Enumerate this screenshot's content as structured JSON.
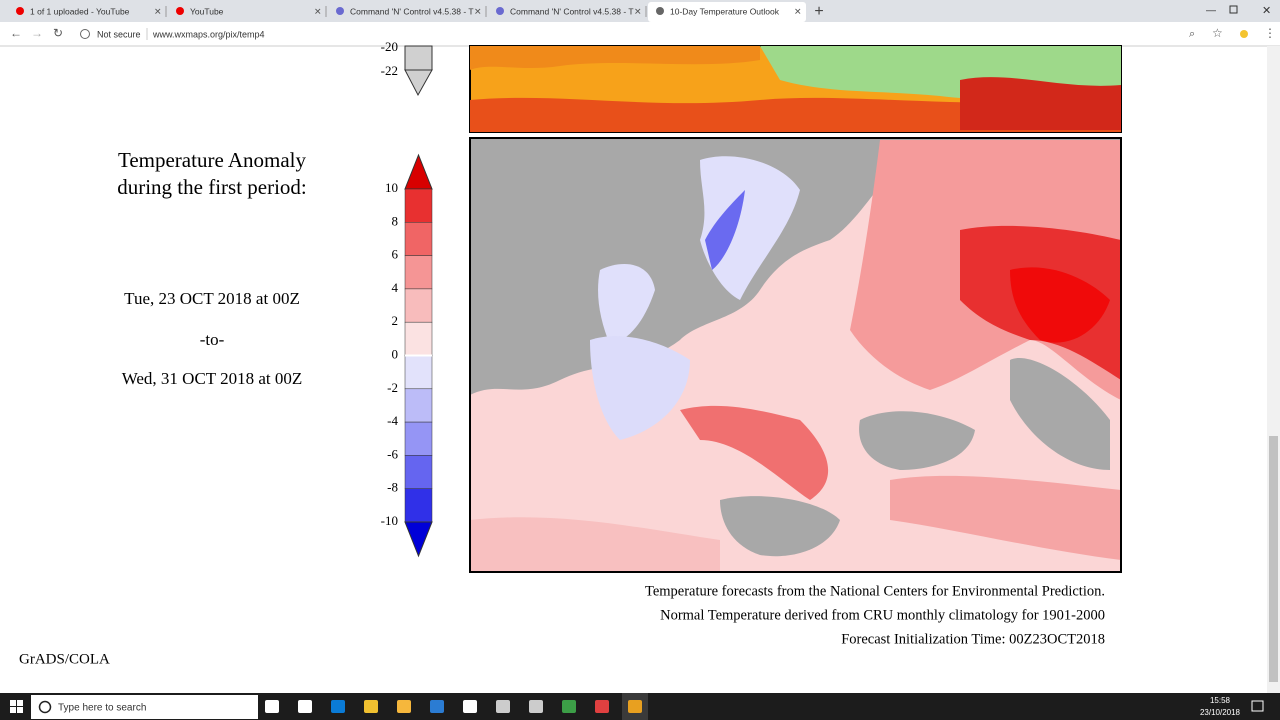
{
  "browser": {
    "tabs": [
      {
        "title": "1 of 1 uploaded - YouTube"
      },
      {
        "title": "YouTube"
      },
      {
        "title": "Command 'N' Control v4.5.38 - T"
      },
      {
        "title": "Command 'N' Control v4.5.38 - T"
      },
      {
        "title": "10-Day Temperature Outlook"
      }
    ],
    "security": "Not secure",
    "url": "www.wxmaps.org/pix/temp4"
  },
  "page": {
    "top_scale_labels": [
      "-20",
      "-22"
    ],
    "heading": [
      "Temperature Anomaly",
      "during the first period:"
    ],
    "period_start": "Tue, 23 OCT 2018 at 00Z",
    "period_sep": "-to-",
    "period_end": "Wed, 31 OCT 2018 at 00Z",
    "scale_labels": [
      "10",
      "8",
      "6",
      "4",
      "2",
      "0",
      "-2",
      "-4",
      "-6",
      "-8",
      "-10"
    ],
    "credits": [
      "Temperature forecasts from the National Centers for Environmental Prediction.",
      "Normal Temperature derived from CRU monthly climatology for 1901-2000",
      "Forecast Initialization Time: 00Z23OCT2018"
    ],
    "signature": "GrADS/COLA"
  },
  "taskbar": {
    "search": "Type here to search",
    "time": "15:58",
    "date": "23/10/2018"
  }
}
